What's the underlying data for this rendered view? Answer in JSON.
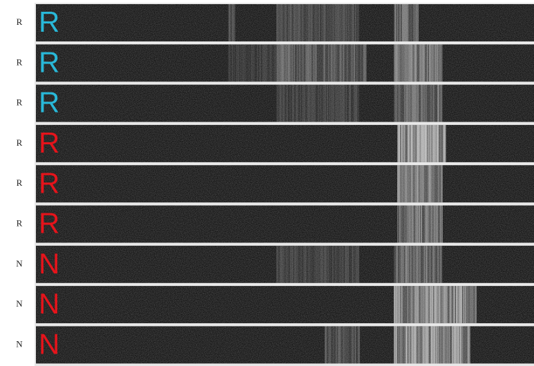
{
  "rows": [
    {
      "tag": "R",
      "label": "R",
      "color": "#29b8d8"
    },
    {
      "tag": "R",
      "label": "R",
      "color": "#29b8d8"
    },
    {
      "tag": "R",
      "label": "R",
      "color": "#29b8d8"
    },
    {
      "tag": "R",
      "label": "R",
      "color": "#e5141b"
    },
    {
      "tag": "R",
      "label": "R",
      "color": "#e5141b"
    },
    {
      "tag": "R",
      "label": "R",
      "color": "#e5141b"
    },
    {
      "tag": "N",
      "label": "N",
      "color": "#e5141b"
    },
    {
      "tag": "N",
      "label": "N",
      "color": "#e5141b"
    },
    {
      "tag": "N",
      "label": "N",
      "color": "#e5141b"
    }
  ]
}
